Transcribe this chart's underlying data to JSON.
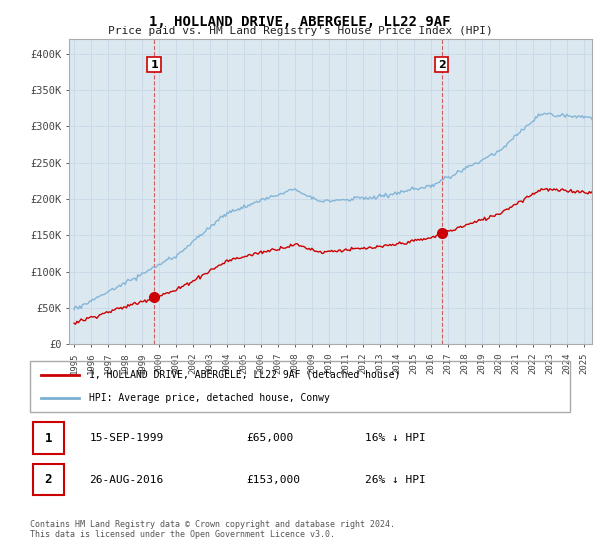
{
  "title": "1, HOLLAND DRIVE, ABERGELE, LL22 9AF",
  "subtitle": "Price paid vs. HM Land Registry's House Price Index (HPI)",
  "ylabel_ticks": [
    0,
    50000,
    100000,
    150000,
    200000,
    250000,
    300000,
    350000,
    400000
  ],
  "ylabel_labels": [
    "£0",
    "£50K",
    "£100K",
    "£150K",
    "£200K",
    "£250K",
    "£300K",
    "£350K",
    "£400K"
  ],
  "ylim": [
    0,
    420000
  ],
  "xlim_start": 1994.7,
  "xlim_end": 2025.5,
  "sale1_x": 1999.708,
  "sale1_y": 65000,
  "sale1_label": "15-SEP-1999",
  "sale1_price": "£65,000",
  "sale1_hpi": "16% ↓ HPI",
  "sale2_x": 2016.646,
  "sale2_y": 153000,
  "sale2_label": "26-AUG-2016",
  "sale2_price": "£153,000",
  "sale2_hpi": "26% ↓ HPI",
  "legend_line1": "1, HOLLAND DRIVE, ABERGELE, LL22 9AF (detached house)",
  "legend_line2": "HPI: Average price, detached house, Conwy",
  "footer": "Contains HM Land Registry data © Crown copyright and database right 2024.\nThis data is licensed under the Open Government Licence v3.0.",
  "line_red_color": "#cc0000",
  "line_blue_color": "#7ab0d4",
  "marker_box_color": "#cc0000",
  "grid_color": "#c8d8e8",
  "chart_bg_color": "#dce8f0",
  "background_color": "#ffffff"
}
